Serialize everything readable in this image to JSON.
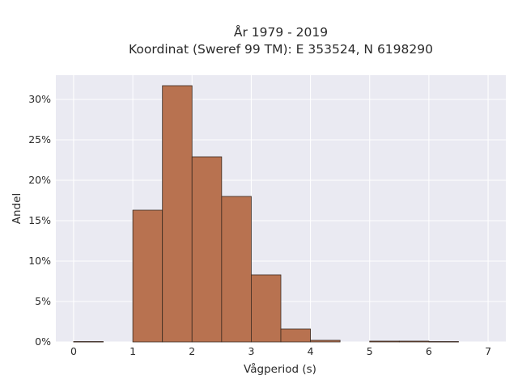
{
  "chart_data": {
    "type": "bar",
    "title": "År 1979 - 2019",
    "subtitle": "Koordinat (Sweref 99 TM): E 353524, N 6198290",
    "xlabel": "Vågperiod (s)",
    "ylabel": "Andel",
    "xlim": [
      -0.3,
      7.3
    ],
    "ylim": [
      0,
      33
    ],
    "x_ticks": [
      0,
      1,
      2,
      3,
      4,
      5,
      6,
      7
    ],
    "y_ticks": [
      0,
      5,
      10,
      15,
      20,
      25,
      30
    ],
    "y_tick_labels": [
      "0%",
      "5%",
      "10%",
      "15%",
      "20%",
      "25%",
      "30%"
    ],
    "bins": [
      {
        "start": 0.0,
        "end": 0.5,
        "value": 0.05
      },
      {
        "start": 0.5,
        "end": 1.0,
        "value": 0
      },
      {
        "start": 1.0,
        "end": 1.5,
        "value": 16.3
      },
      {
        "start": 1.5,
        "end": 2.0,
        "value": 31.7
      },
      {
        "start": 2.0,
        "end": 2.5,
        "value": 22.9
      },
      {
        "start": 2.5,
        "end": 3.0,
        "value": 18.0
      },
      {
        "start": 3.0,
        "end": 3.5,
        "value": 8.3
      },
      {
        "start": 3.5,
        "end": 4.0,
        "value": 1.6
      },
      {
        "start": 4.0,
        "end": 4.5,
        "value": 0.2
      },
      {
        "start": 4.5,
        "end": 5.0,
        "value": 0
      },
      {
        "start": 5.0,
        "end": 5.5,
        "value": 0.1
      },
      {
        "start": 5.5,
        "end": 6.0,
        "value": 0.1
      },
      {
        "start": 6.0,
        "end": 6.5,
        "value": 0.05
      },
      {
        "start": 6.5,
        "end": 7.0,
        "value": 0
      }
    ],
    "grid": true,
    "colors": {
      "bar": "#b87250",
      "bar_edge": "#3a2a20",
      "plot_bg": "#eaeaf2",
      "grid": "#ffffff"
    }
  }
}
